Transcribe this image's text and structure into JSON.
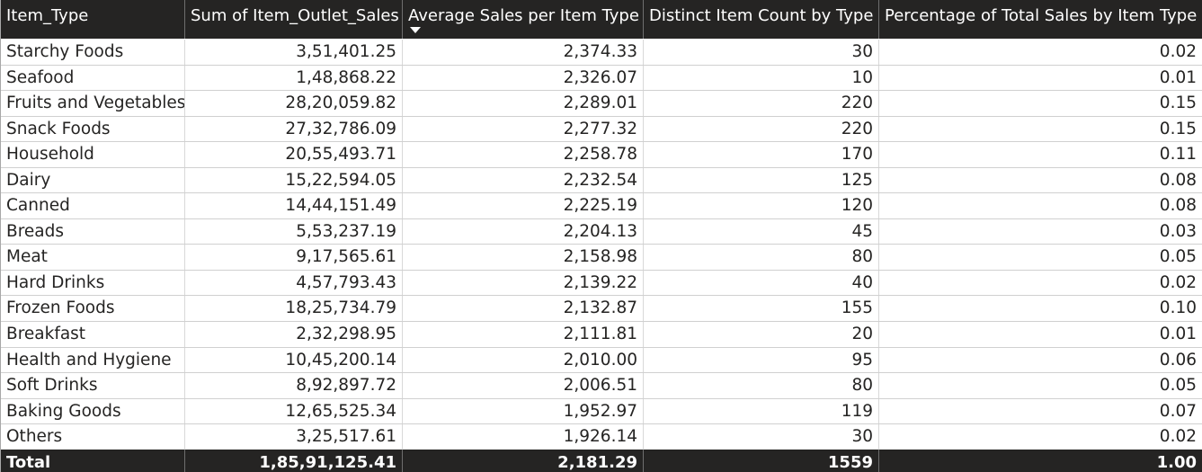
{
  "header": {
    "columns": [
      "Item_Type",
      "Sum of Item_Outlet_Sales",
      "Average Sales per Item Type",
      "Distinct Item Count by Type",
      "Percentage of Total Sales by Item Type"
    ],
    "sorted_column_icon": "sort-descending-icon"
  },
  "rows": [
    {
      "item_type": "Starchy Foods",
      "sum_sales": "3,51,401.25",
      "avg_sales": "2,374.33",
      "distinct_count": "30",
      "pct_total": "0.02"
    },
    {
      "item_type": "Seafood",
      "sum_sales": "1,48,868.22",
      "avg_sales": "2,326.07",
      "distinct_count": "10",
      "pct_total": "0.01"
    },
    {
      "item_type": "Fruits and Vegetables",
      "sum_sales": "28,20,059.82",
      "avg_sales": "2,289.01",
      "distinct_count": "220",
      "pct_total": "0.15"
    },
    {
      "item_type": "Snack Foods",
      "sum_sales": "27,32,786.09",
      "avg_sales": "2,277.32",
      "distinct_count": "220",
      "pct_total": "0.15"
    },
    {
      "item_type": "Household",
      "sum_sales": "20,55,493.71",
      "avg_sales": "2,258.78",
      "distinct_count": "170",
      "pct_total": "0.11"
    },
    {
      "item_type": "Dairy",
      "sum_sales": "15,22,594.05",
      "avg_sales": "2,232.54",
      "distinct_count": "125",
      "pct_total": "0.08"
    },
    {
      "item_type": "Canned",
      "sum_sales": "14,44,151.49",
      "avg_sales": "2,225.19",
      "distinct_count": "120",
      "pct_total": "0.08"
    },
    {
      "item_type": "Breads",
      "sum_sales": "5,53,237.19",
      "avg_sales": "2,204.13",
      "distinct_count": "45",
      "pct_total": "0.03"
    },
    {
      "item_type": "Meat",
      "sum_sales": "9,17,565.61",
      "avg_sales": "2,158.98",
      "distinct_count": "80",
      "pct_total": "0.05"
    },
    {
      "item_type": "Hard Drinks",
      "sum_sales": "4,57,793.43",
      "avg_sales": "2,139.22",
      "distinct_count": "40",
      "pct_total": "0.02"
    },
    {
      "item_type": "Frozen Foods",
      "sum_sales": "18,25,734.79",
      "avg_sales": "2,132.87",
      "distinct_count": "155",
      "pct_total": "0.10"
    },
    {
      "item_type": "Breakfast",
      "sum_sales": "2,32,298.95",
      "avg_sales": "2,111.81",
      "distinct_count": "20",
      "pct_total": "0.01"
    },
    {
      "item_type": "Health and Hygiene",
      "sum_sales": "10,45,200.14",
      "avg_sales": "2,010.00",
      "distinct_count": "95",
      "pct_total": "0.06"
    },
    {
      "item_type": "Soft Drinks",
      "sum_sales": "8,92,897.72",
      "avg_sales": "2,006.51",
      "distinct_count": "80",
      "pct_total": "0.05"
    },
    {
      "item_type": "Baking Goods",
      "sum_sales": "12,65,525.34",
      "avg_sales": "1,952.97",
      "distinct_count": "119",
      "pct_total": "0.07"
    },
    {
      "item_type": "Others",
      "sum_sales": "3,25,517.61",
      "avg_sales": "1,926.14",
      "distinct_count": "30",
      "pct_total": "0.02"
    }
  ],
  "total": {
    "label": "Total",
    "sum_sales": "1,85,91,125.41",
    "avg_sales": "2,181.29",
    "distinct_count": "1559",
    "pct_total": "1.00"
  },
  "colors": {
    "header_bg": "#252423",
    "header_text": "#ffffff",
    "body_text": "#252423",
    "row_divider": "#d0d0d0"
  }
}
